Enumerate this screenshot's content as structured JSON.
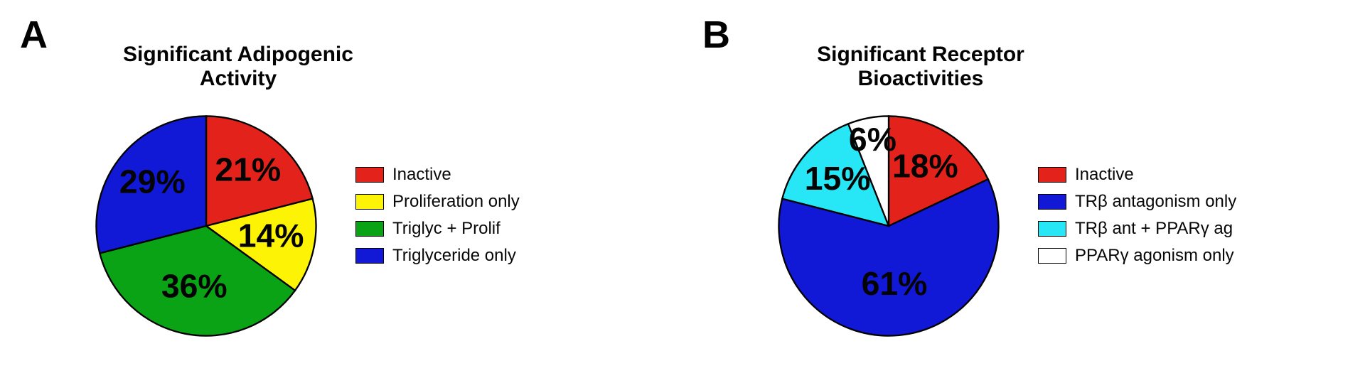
{
  "figure": {
    "background_color": "#ffffff",
    "text_color": "#040404",
    "letter_fontsize": 54,
    "title_fontsize": 30,
    "label_fontsize": 30,
    "legend_fontsize": 24
  },
  "panelA": {
    "letter": "A",
    "title": "Significant Adipogenic Activity",
    "type": "pie",
    "start_angle_deg": -90,
    "slice_stroke": "#000000",
    "slice_stroke_width": 1.5,
    "slices": [
      {
        "label": "Inactive",
        "value": 21,
        "display": "21%",
        "color": "#e3221b",
        "label_r": 0.62
      },
      {
        "label": "Proliferation only",
        "value": 14,
        "display": "14%",
        "color": "#fdf304",
        "label_r": 0.6
      },
      {
        "label": "Triglyc + Prolif",
        "value": 36,
        "display": "36%",
        "color": "#0aa316",
        "label_r": 0.58
      },
      {
        "label": "Triglyceride only",
        "value": 29,
        "display": "29%",
        "color": "#1119d7",
        "label_r": 0.62
      }
    ],
    "legend": [
      {
        "color": "#e3221b",
        "text": "Inactive"
      },
      {
        "color": "#fdf304",
        "text": "Proliferation only"
      },
      {
        "color": "#0aa316",
        "text": "Triglyc + Prolif"
      },
      {
        "color": "#1119d7",
        "text": "Triglyceride only"
      }
    ]
  },
  "panelB": {
    "letter": "B",
    "title": "Significant Receptor Bioactivities",
    "type": "pie",
    "start_angle_deg": -90,
    "slice_stroke": "#000000",
    "slice_stroke_width": 1.5,
    "slices": [
      {
        "label": "Inactive",
        "value": 18,
        "display": "18%",
        "color": "#e3221b",
        "label_r": 0.62
      },
      {
        "label": "TRβ antagonism only",
        "value": 61,
        "display": "61%",
        "color": "#1119d7",
        "label_r": 0.55
      },
      {
        "label": "TRβ ant + PPARγ ag",
        "value": 15,
        "display": "15%",
        "color": "#27e7f7",
        "label_r": 0.62
      },
      {
        "label": "PPARγ agonism only",
        "value": 6,
        "display": "6%",
        "color": "#ffffff",
        "label_r": 0.78
      }
    ],
    "legend": [
      {
        "color": "#e3221b",
        "text": "Inactive"
      },
      {
        "color": "#1119d7",
        "text": "TRβ antagonism only"
      },
      {
        "color": "#27e7f7",
        "text": "TRβ ant + PPARγ ag"
      },
      {
        "color": "#ffffff",
        "text": "PPARγ agonism only"
      }
    ]
  }
}
